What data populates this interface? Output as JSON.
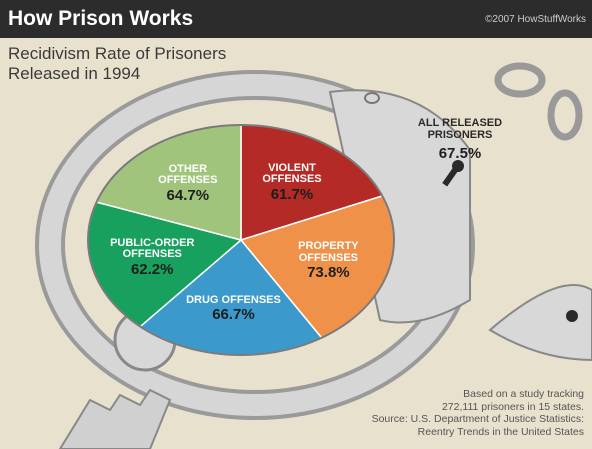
{
  "header": {
    "title": "How Prison Works",
    "credit": "©2007 HowStuffWorks"
  },
  "chart_data": {
    "type": "pie",
    "title": "Recidivism Rate of Prisoners Released in 1994",
    "categories": [
      "VIOLENT OFFENSES",
      "PROPERTY OFFENSES",
      "DRUG OFFENSES",
      "PUBLIC-ORDER OFFENSES",
      "OTHER OFFENSES"
    ],
    "values": [
      61.7,
      73.8,
      66.7,
      62.2,
      64.7
    ],
    "value_labels": [
      "61.7%",
      "73.8%",
      "66.7%",
      "62.2%",
      "64.7%"
    ],
    "colors": [
      "#b42a26",
      "#f0914a",
      "#3b9acb",
      "#17a05e",
      "#a0c47c"
    ],
    "overall_label": "ALL RELEASED PRISONERS",
    "overall_value_label": "67.5%",
    "note": [
      "Based on a study tracking",
      "272,111 prisoners in 15 states.",
      "Source: U.S. Department of Justice Statistics:",
      "Reentry Trends in the United States"
    ]
  }
}
